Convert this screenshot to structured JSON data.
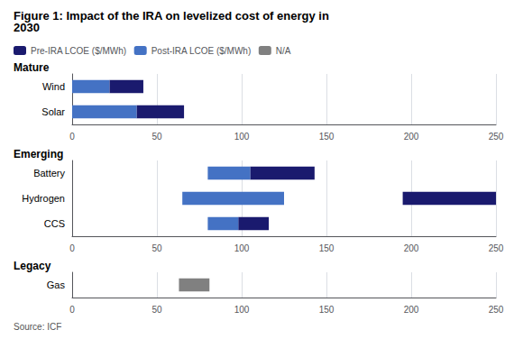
{
  "chart_data": {
    "type": "bar",
    "orientation": "horizontal",
    "title": "Figure 1: Impact of the IRA on levelized cost of energy in\n2030",
    "source": "Source: ICF",
    "sections": [
      {
        "label": "Mature",
        "categories": [
          "Wind",
          "Solar"
        ]
      },
      {
        "label": "Emerging",
        "categories": [
          "Battery",
          "Hydrogen",
          "CCS"
        ]
      },
      {
        "label": "Legacy",
        "categories": [
          "Gas"
        ]
      }
    ],
    "series": [
      {
        "name": "Pre-IRA LCOE ($/MWh)",
        "color": "#1a1a6e",
        "starts": [
          22,
          38,
          105,
          195,
          98,
          null
        ],
        "values": [
          20,
          28,
          38,
          55,
          18,
          null
        ]
      },
      {
        "name": "Post-IRA LCOE ($/MWh)",
        "color": "#4472C4",
        "starts": [
          0,
          0,
          80,
          65,
          80,
          null
        ],
        "values": [
          22,
          38,
          25,
          60,
          18,
          null
        ]
      },
      {
        "name": "N/A",
        "color": "#808080",
        "starts": [
          null,
          null,
          null,
          null,
          null,
          63
        ],
        "values": [
          null,
          null,
          null,
          null,
          null,
          18
        ]
      }
    ],
    "xlim": [
      0,
      250
    ],
    "xticks": [
      0,
      50,
      100,
      150,
      200,
      250
    ],
    "grid": true,
    "legend": "top-left"
  }
}
